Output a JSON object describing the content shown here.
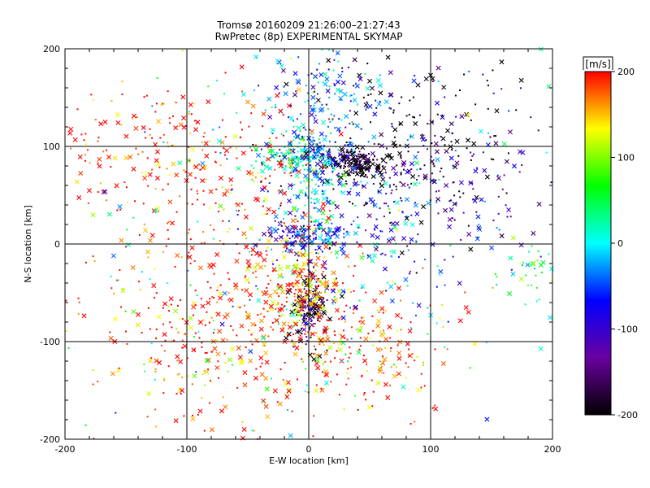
{
  "chart_data": {
    "type": "scatter",
    "title": "Tromsø 20160209 21:26:00–21:27:43",
    "subtitle": "RwPretec (8p) EXPERIMENTAL SKYMAP",
    "xlabel": "E-W location [km]",
    "ylabel": "N-S location [km]",
    "xlim": [
      -200,
      200
    ],
    "ylim": [
      -200,
      200
    ],
    "xticks": [
      "-200",
      "-100",
      "0",
      "100",
      "200"
    ],
    "yticks": [
      "-200",
      "-100",
      "0",
      "100",
      "200"
    ],
    "grid": true,
    "markers": [
      "dot",
      "x"
    ],
    "colorbar": {
      "label": "[m/s]",
      "range": [
        -200,
        200
      ],
      "ticks": [
        "200",
        "100",
        "0",
        "-100",
        "-200"
      ],
      "colors": [
        "#ff0000",
        "#ffff00",
        "#00ff00",
        "#00ffff",
        "#0000ff",
        "#6a00a0",
        "#000000"
      ]
    },
    "clusters": [
      {
        "cx": -10,
        "cy": 90,
        "sx": 20,
        "sy": 10,
        "v": 20,
        "n": 120
      },
      {
        "cx": 15,
        "cy": 90,
        "sx": 12,
        "sy": 8,
        "v": -80,
        "n": 80
      },
      {
        "cx": 40,
        "cy": 82,
        "sx": 12,
        "sy": 8,
        "v": -200,
        "n": 160
      },
      {
        "cx": 0,
        "cy": 8,
        "sx": 15,
        "sy": 8,
        "v": -90,
        "n": 120
      },
      {
        "cx": 0,
        "cy": 70,
        "sx": 12,
        "sy": 40,
        "v": 0,
        "n": 140
      },
      {
        "cx": 0,
        "cy": -65,
        "sx": 8,
        "sy": 20,
        "v": -180,
        "n": 150
      },
      {
        "cx": -5,
        "cy": -40,
        "sx": 15,
        "sy": 30,
        "v": 140,
        "n": 150
      },
      {
        "cx": -50,
        "cy": -70,
        "sx": 50,
        "sy": 60,
        "v": 200,
        "n": 380
      },
      {
        "cx": 40,
        "cy": -95,
        "sx": 40,
        "sy": 40,
        "v": 180,
        "n": 220
      },
      {
        "cx": 80,
        "cy": 110,
        "sx": 45,
        "sy": 50,
        "v": -200,
        "n": 220
      },
      {
        "cx": 100,
        "cy": 60,
        "sx": 50,
        "sy": 40,
        "v": -120,
        "n": 120
      },
      {
        "cx": 10,
        "cy": 150,
        "sx": 25,
        "sy": 30,
        "v": -50,
        "n": 120
      },
      {
        "cx": -140,
        "cy": 100,
        "sx": 50,
        "sy": 30,
        "v": 200,
        "n": 130
      },
      {
        "cx": -70,
        "cy": 80,
        "sx": 40,
        "sy": 50,
        "v": 200,
        "n": 160
      },
      {
        "cx": 180,
        "cy": -30,
        "sx": 15,
        "sy": 15,
        "v": 40,
        "n": 40
      },
      {
        "cx": 50,
        "cy": 20,
        "sx": 50,
        "sy": 40,
        "v": -60,
        "n": 180
      },
      {
        "cx": -120,
        "cy": -80,
        "sx": 60,
        "sy": 70,
        "v": 170,
        "n": 100
      },
      {
        "cx": 0,
        "cy": 0,
        "sx": 130,
        "sy": 130,
        "v": 0,
        "n": 250
      }
    ]
  }
}
